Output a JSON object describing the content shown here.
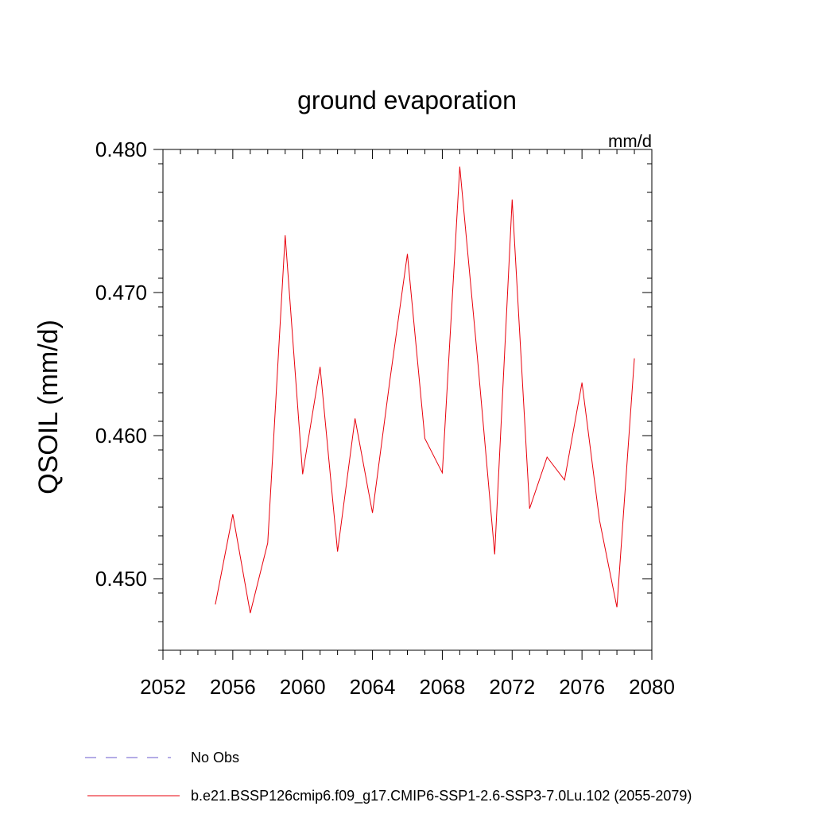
{
  "chart_data": {
    "type": "line",
    "title": "ground evaporation",
    "units_label": "mm/d",
    "ylabel": "QSOIL  (mm/d)",
    "xlabel": "",
    "xlim": [
      2052,
      2080
    ],
    "ylim": [
      0.445,
      0.48
    ],
    "x_ticks": [
      2052,
      2056,
      2060,
      2064,
      2068,
      2072,
      2076,
      2080
    ],
    "x_tick_labels": [
      "2052",
      "2056",
      "2060",
      "2064",
      "2068",
      "2072",
      "2076",
      "2080"
    ],
    "y_ticks": [
      0.45,
      0.46,
      0.47,
      0.48
    ],
    "y_tick_labels": [
      "0.450",
      "0.460",
      "0.470",
      "0.480"
    ],
    "grid": false,
    "legend_placement": "bottom",
    "legend": [
      {
        "label": "No Obs",
        "color": "#6a5acd",
        "style": "dashed"
      },
      {
        "label": "b.e21.BSSP126cmip6.f09_g17.CMIP6-SSP1-2.6-SSP3-7.0Lu.102 (2055-2079)",
        "color": "#e8000b",
        "style": "solid"
      }
    ],
    "series": [
      {
        "color": "#e8000b",
        "x": [
          2055,
          2056,
          2057,
          2058,
          2059,
          2060,
          2061,
          2062,
          2063,
          2064,
          2065,
          2066,
          2067,
          2068,
          2069,
          2070,
          2071,
          2072,
          2073,
          2074,
          2075,
          2076,
          2077,
          2078,
          2079
        ],
        "values": [
          0.4482,
          0.4545,
          0.4476,
          0.4525,
          0.474,
          0.4573,
          0.4648,
          0.4519,
          0.4612,
          0.4546,
          0.4639,
          0.4727,
          0.4598,
          0.4574,
          0.4788,
          0.4656,
          0.4517,
          0.4765,
          0.4549,
          0.4585,
          0.4569,
          0.4637,
          0.4541,
          0.448,
          0.4654
        ]
      }
    ]
  }
}
